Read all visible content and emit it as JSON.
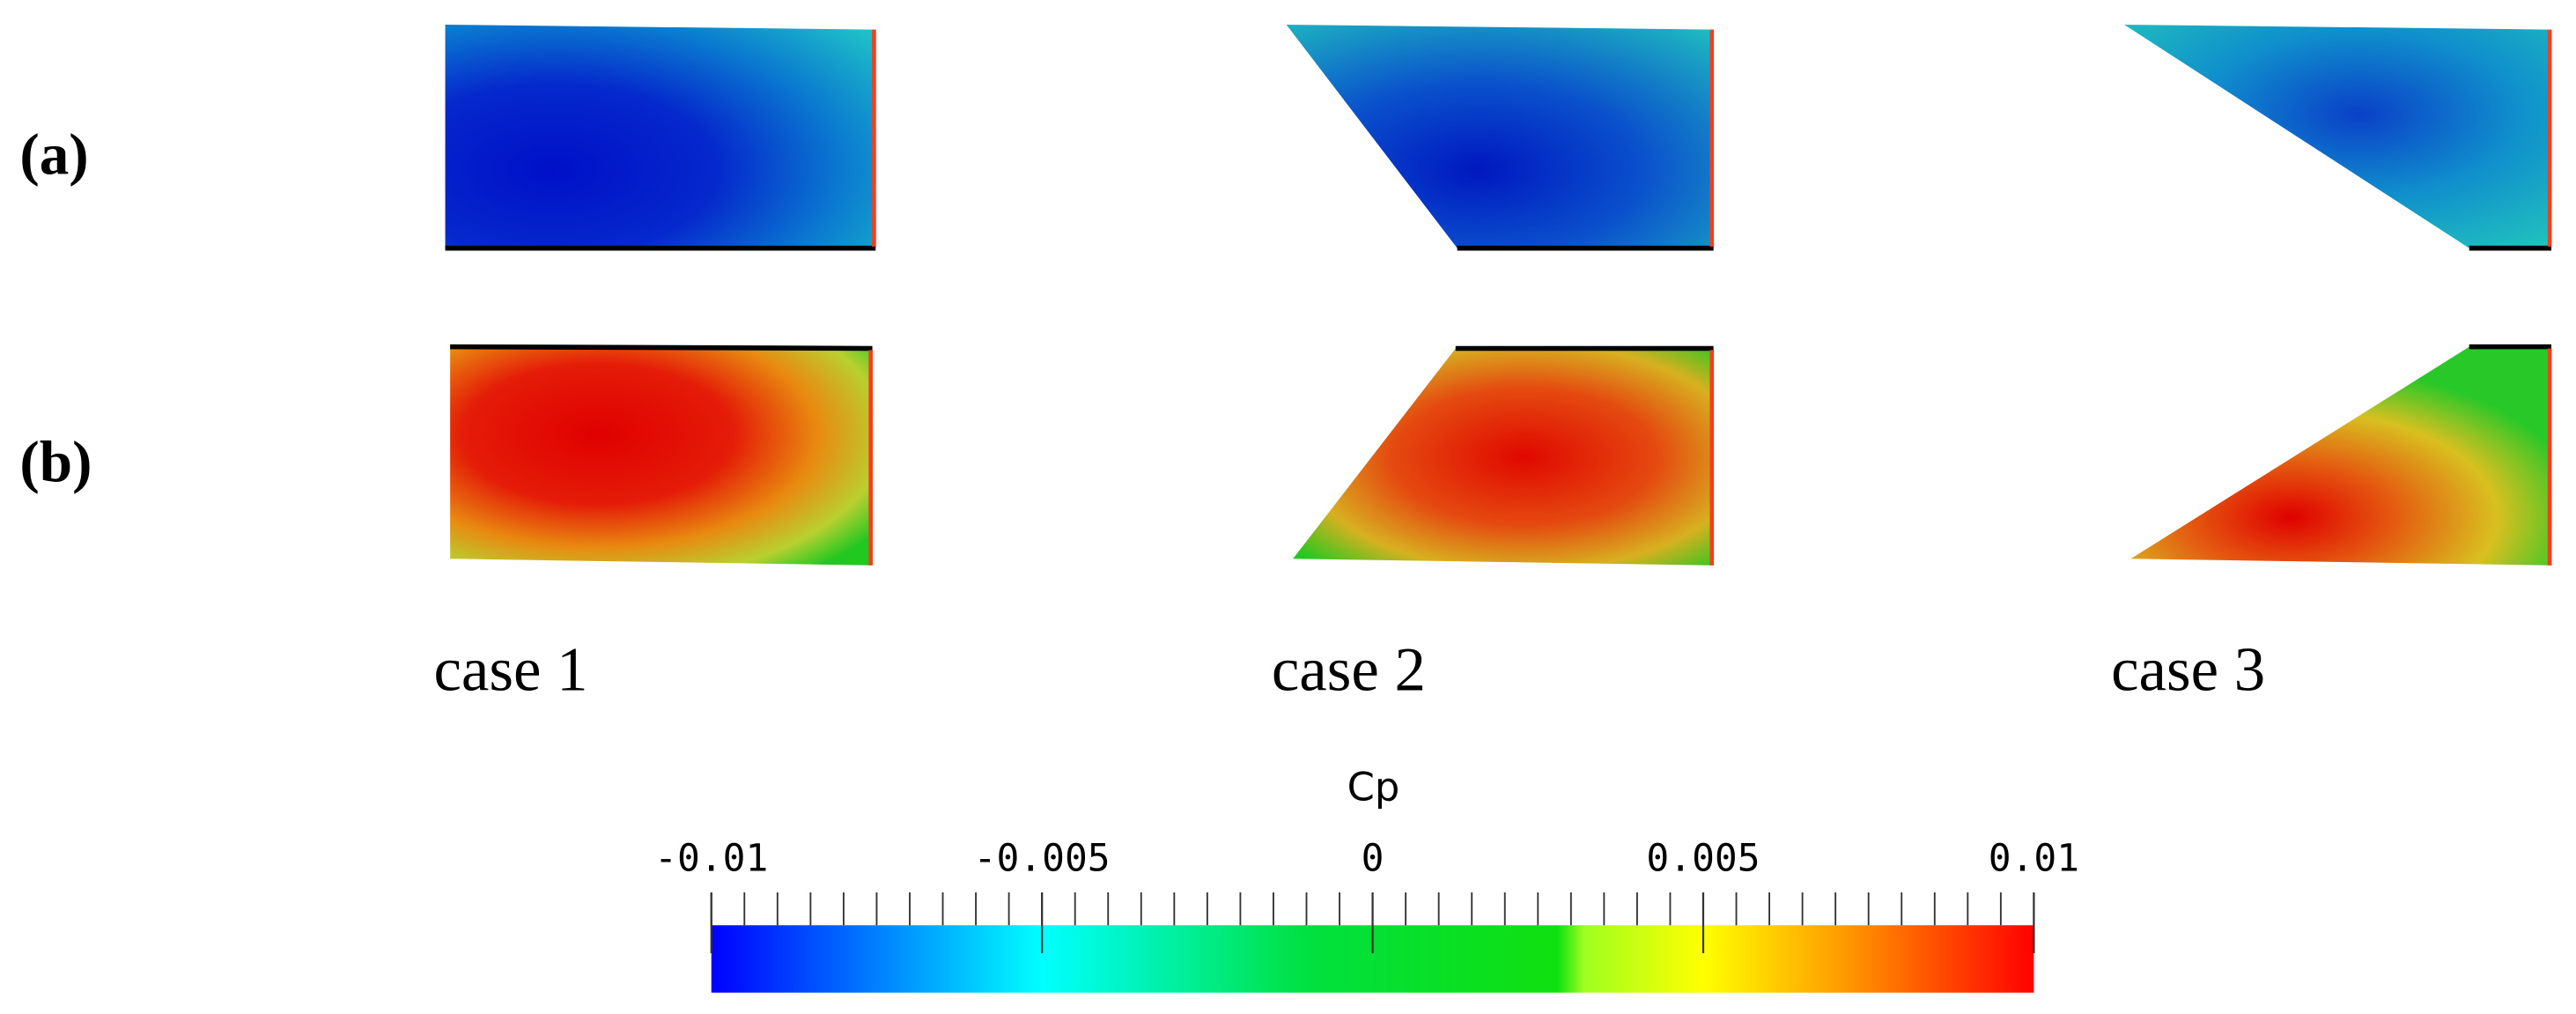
{
  "figure": {
    "row_labels": [
      "(a)",
      "(b)"
    ],
    "case_labels": [
      "case 1",
      "case 2",
      "case 3"
    ],
    "colorbar": {
      "title": "Cp",
      "lim": [
        -0.01,
        0.01
      ],
      "ticks": [
        -0.01,
        -0.005,
        0,
        0.005,
        0.01
      ]
    }
  }
}
